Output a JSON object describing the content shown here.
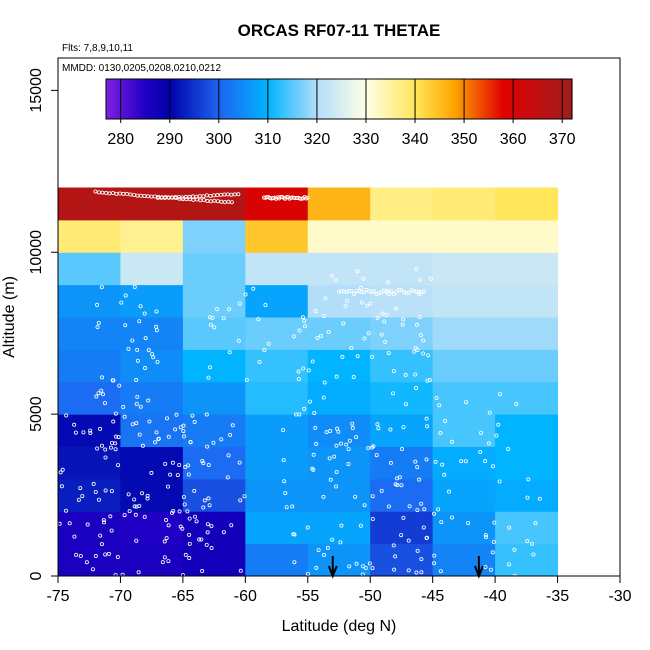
{
  "chart_data": {
    "type": "heatmap",
    "title": "ORCAS RF07-11 THETAE",
    "flights_note": "Flts: 7,8,9,10,11",
    "dates_note": "MMDD: 0130,0205,0208,0210,0212",
    "xlabel": "Latitude (deg N)",
    "ylabel": "Altitude (m)",
    "xlim": [
      -75,
      -30
    ],
    "ylim": [
      0,
      16000
    ],
    "x_ticks": [
      -75,
      -70,
      -65,
      -60,
      -55,
      -50,
      -45,
      -40,
      -35,
      -30
    ],
    "x_tick_labels": [
      "-75",
      "-70",
      "-65",
      "-60",
      "-55",
      "-50",
      "-45",
      "-40",
      "-35",
      "-30"
    ],
    "y_ticks": [
      0,
      5000,
      10000,
      15000
    ],
    "y_tick_labels": [
      "0",
      "5000",
      "10000",
      "15000"
    ],
    "colorbar": {
      "min": 277,
      "max": 372,
      "ticks": [
        280,
        290,
        300,
        310,
        320,
        330,
        340,
        350,
        360,
        370
      ],
      "tick_labels": [
        "280",
        "290",
        "300",
        "310",
        "320",
        "330",
        "340",
        "350",
        "360",
        "370"
      ]
    },
    "lat_edges": [
      -75,
      -70,
      -65,
      -60,
      -55,
      -50,
      -45,
      -40,
      -35
    ],
    "alt_edges": [
      0,
      1000,
      2000,
      3000,
      4000,
      5000,
      6000,
      7000,
      8000,
      9000,
      10000,
      11000,
      12000
    ],
    "theta_e": [
      [
        286,
        286,
        287,
        303,
        306,
        298,
        304,
        313
      ],
      [
        286,
        285,
        287,
        308,
        308,
        296,
        306,
        314
      ],
      [
        293,
        291,
        298,
        306,
        306,
        301,
        308,
        309
      ],
      [
        292,
        291,
        301,
        307,
        306,
        303,
        309,
        310
      ],
      [
        291,
        302,
        303,
        307,
        305,
        308,
        314,
        310
      ],
      [
        301,
        303,
        306,
        312,
        309,
        311,
        314,
        314
      ],
      [
        303,
        305,
        310,
        313,
        310,
        313,
        316,
        316
      ],
      [
        304,
        304,
        315,
        316,
        316,
        317,
        319,
        319
      ],
      [
        306,
        307,
        316,
        308,
        320,
        321,
        322,
        322
      ],
      [
        315,
        323,
        316,
        322,
        322,
        322,
        323,
        323
      ],
      [
        338,
        336,
        317,
        344,
        332,
        332,
        332,
        332
      ],
      [
        368,
        368,
        368,
        360,
        346,
        337,
        338,
        340
      ]
    ],
    "arrows_lat": [
      -53,
      -41.3
    ]
  }
}
